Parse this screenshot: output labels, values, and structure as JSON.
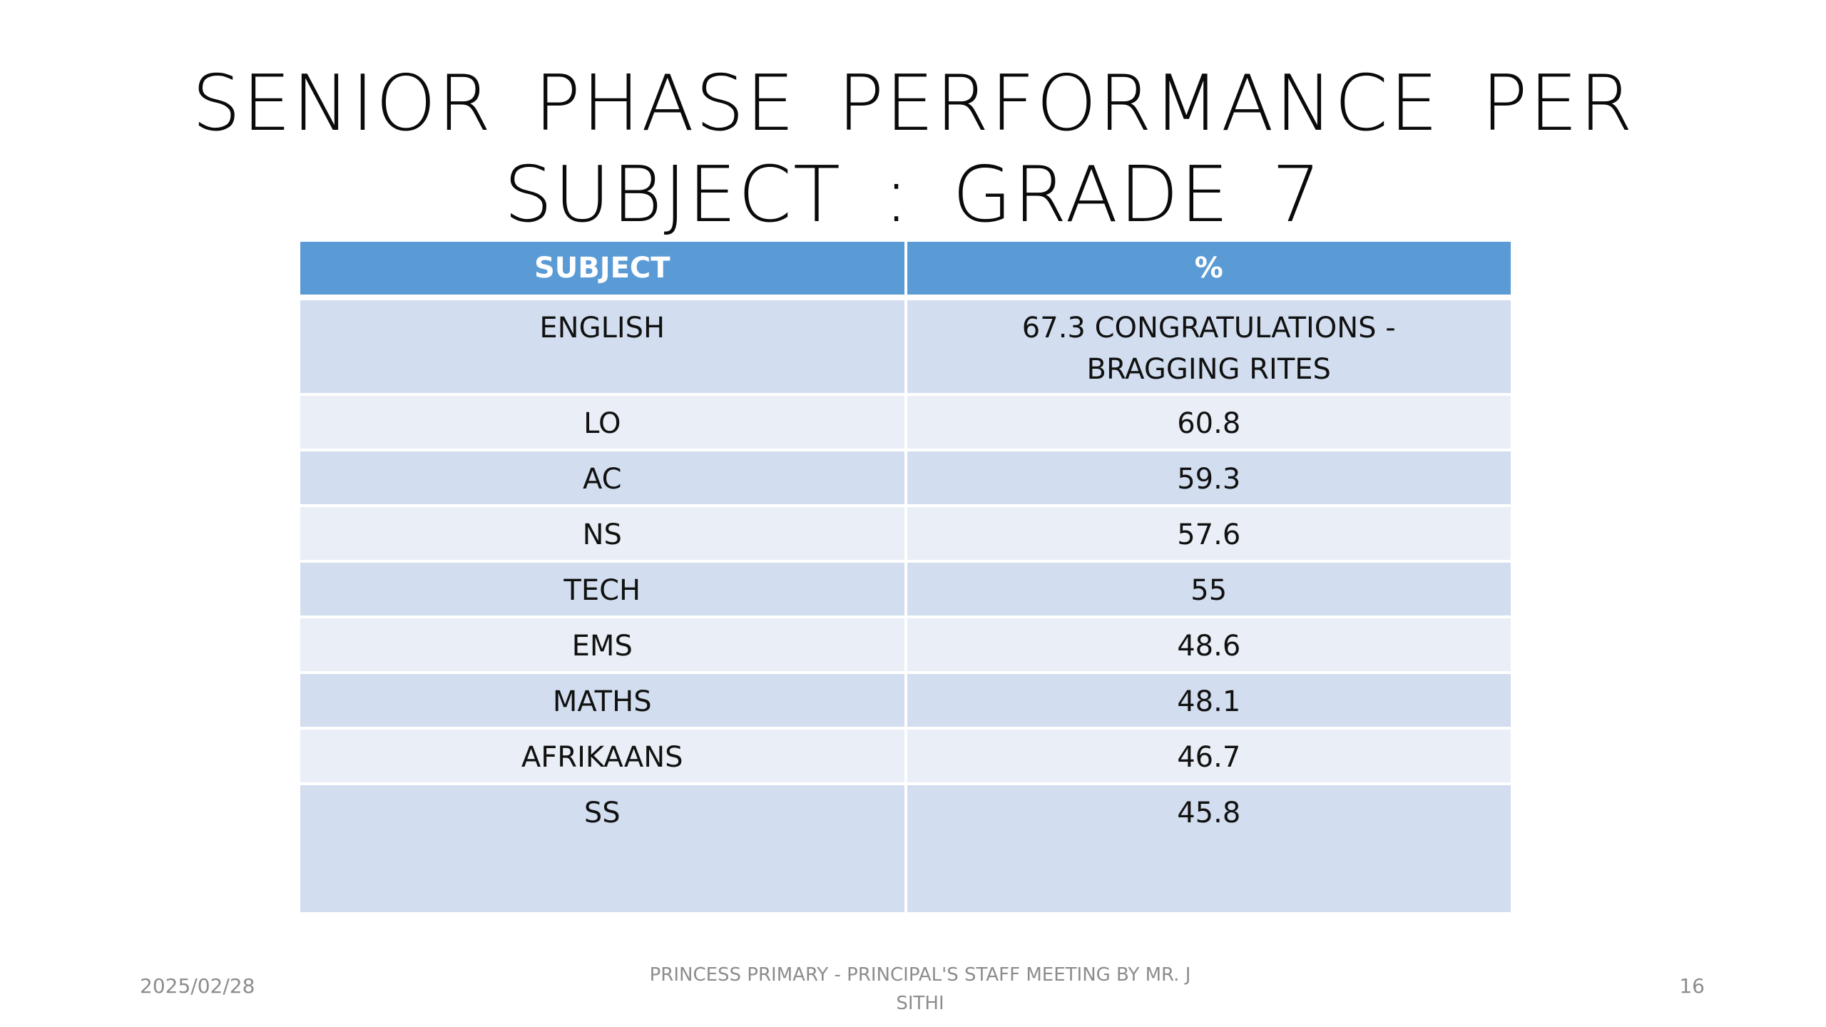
{
  "slide": {
    "title_line1": "SENIOR PHASE PERFORMANCE PER",
    "title_line2": "SUBJECT : GRADE 7"
  },
  "table": {
    "headers": [
      "SUBJECT",
      "%"
    ],
    "rows": [
      {
        "subject": "ENGLISH",
        "percent_line1": "67.3 CONGRATULATIONS -",
        "percent_line2": "BRAGGING RITES"
      },
      {
        "subject": "LO",
        "percent": "60.8"
      },
      {
        "subject": "AC",
        "percent": "59.3"
      },
      {
        "subject": "NS",
        "percent": "57.6"
      },
      {
        "subject": "TECH",
        "percent": "55"
      },
      {
        "subject": "EMS",
        "percent": "48.6"
      },
      {
        "subject": "MATHS",
        "percent": "48.1"
      },
      {
        "subject": "AFRIKAANS",
        "percent": "46.7"
      },
      {
        "subject": "SS",
        "percent": "45.8"
      }
    ]
  },
  "footer": {
    "date": "2025/02/28",
    "center_line1": "PRINCESS PRIMARY - PRINCIPAL'S STAFF MEETING BY MR. J",
    "center_line2": "SITHI",
    "page_number": "16"
  },
  "colors": {
    "header_bg": "#5b9bd5",
    "row_odd": "#d2deef",
    "row_even": "#eaeff7",
    "footer_text": "#8c8c8c"
  }
}
